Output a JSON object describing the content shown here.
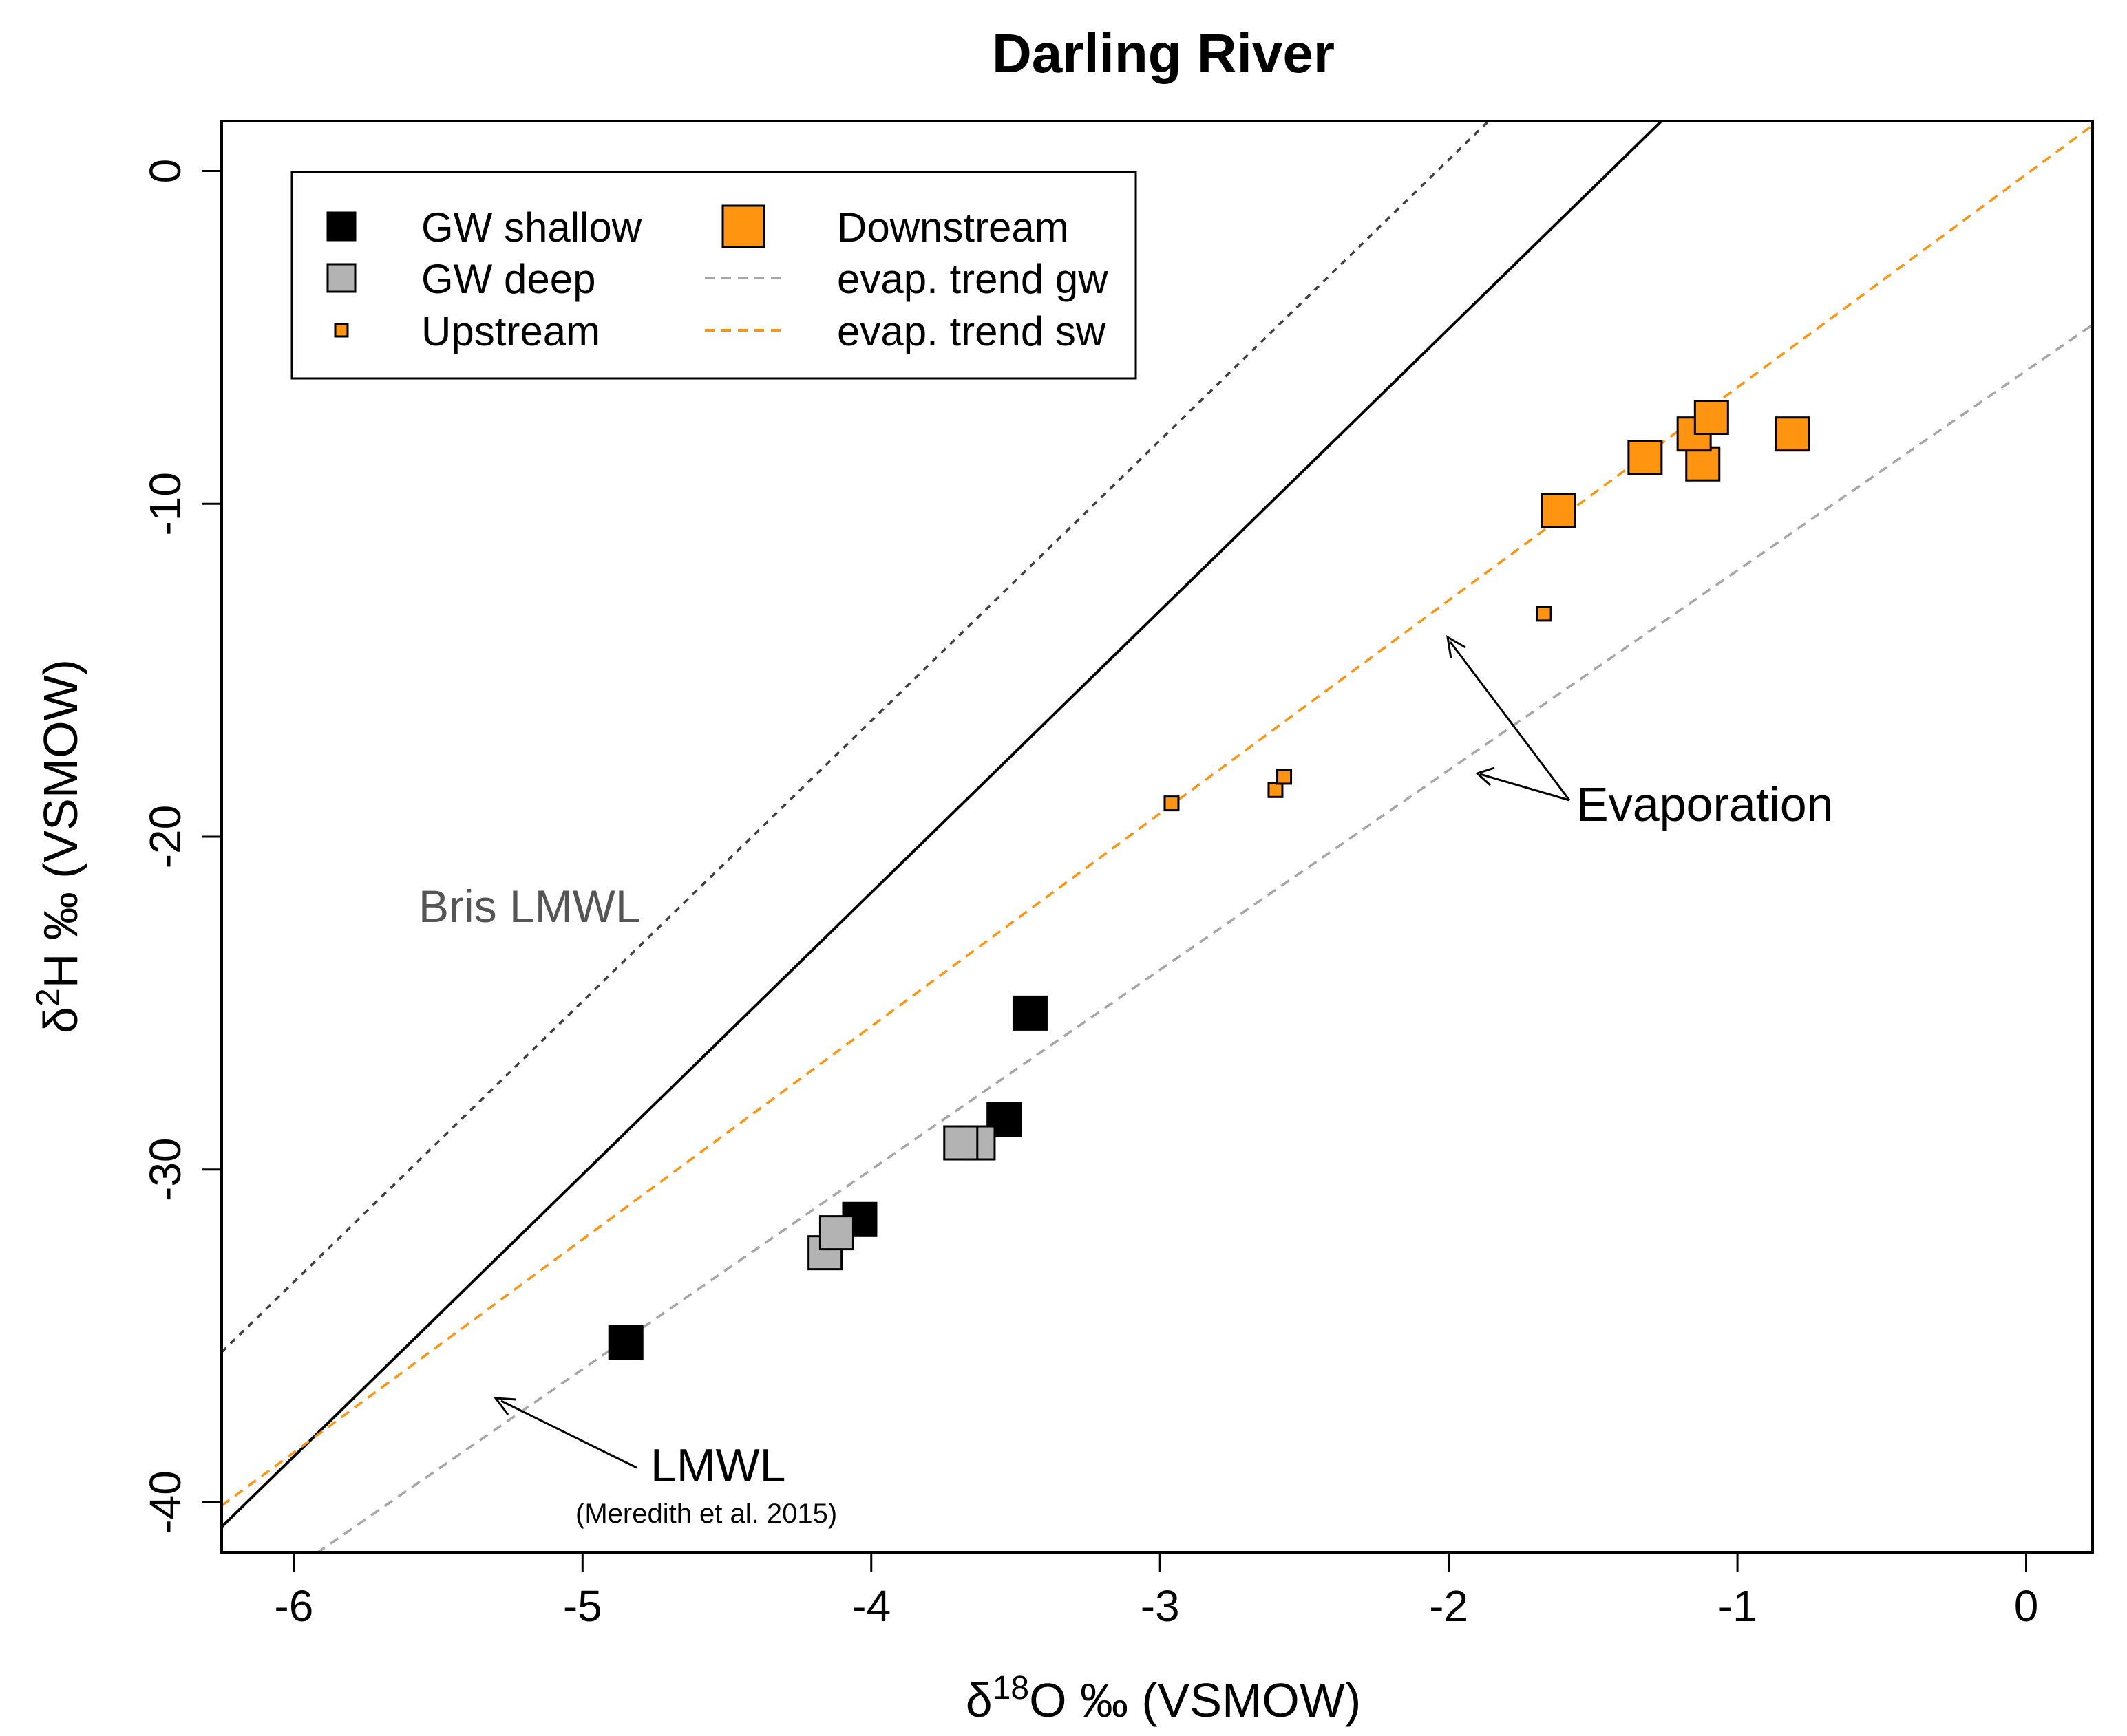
{
  "chart_data": {
    "type": "scatter",
    "title": "Darling River",
    "xlabel": {
      "delta": "δ",
      "sup": "18",
      "rest": "O ‰ (VSMOW)"
    },
    "ylabel": {
      "delta": "δ",
      "sup": "2",
      "rest": "H ‰ (VSMOW)"
    },
    "xlim": [
      -6.25,
      0.23
    ],
    "ylim": [
      -41.5,
      1.5
    ],
    "xticks": [
      -6,
      -5,
      -4,
      -3,
      -2,
      -1,
      0
    ],
    "yticks": [
      0,
      -10,
      -20,
      -30,
      -40
    ],
    "series": [
      {
        "name": "GW shallow",
        "color": "#000000",
        "size": "large",
        "points": [
          [
            -4.85,
            -35.2
          ],
          [
            -4.04,
            -31.5
          ],
          [
            -3.54,
            -28.5
          ],
          [
            -3.45,
            -25.3
          ]
        ]
      },
      {
        "name": "GW deep",
        "color": "#b3b3b3",
        "size": "large",
        "points": [
          [
            -4.16,
            -32.5
          ],
          [
            -4.12,
            -31.9
          ],
          [
            -3.63,
            -29.2
          ],
          [
            -3.69,
            -29.2
          ]
        ]
      },
      {
        "name": "Upstream",
        "color": "#ff9411",
        "size": "small",
        "points": [
          [
            -2.96,
            -19.0
          ],
          [
            -2.6,
            -18.6
          ],
          [
            -2.57,
            -18.2
          ],
          [
            -1.67,
            -13.3
          ]
        ]
      },
      {
        "name": "Downstream",
        "color": "#ff9411",
        "size": "large",
        "points": [
          [
            -1.62,
            -10.2
          ],
          [
            -1.32,
            -8.6
          ],
          [
            -1.12,
            -8.8
          ],
          [
            -1.15,
            -7.9
          ],
          [
            -1.09,
            -7.4
          ],
          [
            -0.81,
            -7.9
          ]
        ]
      }
    ],
    "lines": [
      {
        "name": "LMWL",
        "style": "solid",
        "color": "#000000",
        "slope": 8.47,
        "intercept": 12.2
      },
      {
        "name": "Bris LMWL",
        "style": "dotted",
        "color": "#404040",
        "slope": 8.43,
        "intercept": 17.2
      },
      {
        "name": "evap. trend sw",
        "style": "dashed",
        "color": "#ff9411",
        "slope": 6.4,
        "intercept": -0.1
      },
      {
        "name": "evap. trend gw",
        "style": "dashed",
        "color": "#a6a6a6",
        "slope": 6.0,
        "intercept": -6.0
      }
    ],
    "legend": {
      "position": "top-left",
      "items": [
        {
          "label": "GW shallow",
          "kind": "square-large",
          "color": "#000000"
        },
        {
          "label": "GW deep",
          "kind": "square-large",
          "color": "#b3b3b3"
        },
        {
          "label": "Upstream",
          "kind": "square-small",
          "color": "#ff9411"
        },
        {
          "label": "Downstream",
          "kind": "square-large",
          "color": "#ff9411"
        },
        {
          "label": "evap. trend gw",
          "kind": "dash",
          "color": "#a6a6a6"
        },
        {
          "label": "evap. trend sw",
          "kind": "dash",
          "color": "#ff9411"
        }
      ]
    },
    "annotations": {
      "bris": "Bris LMWL",
      "lmwl": "LMWL",
      "lmwl_ref": "(Meredith et al. 2015)",
      "evaporation": "Evaporation"
    }
  }
}
